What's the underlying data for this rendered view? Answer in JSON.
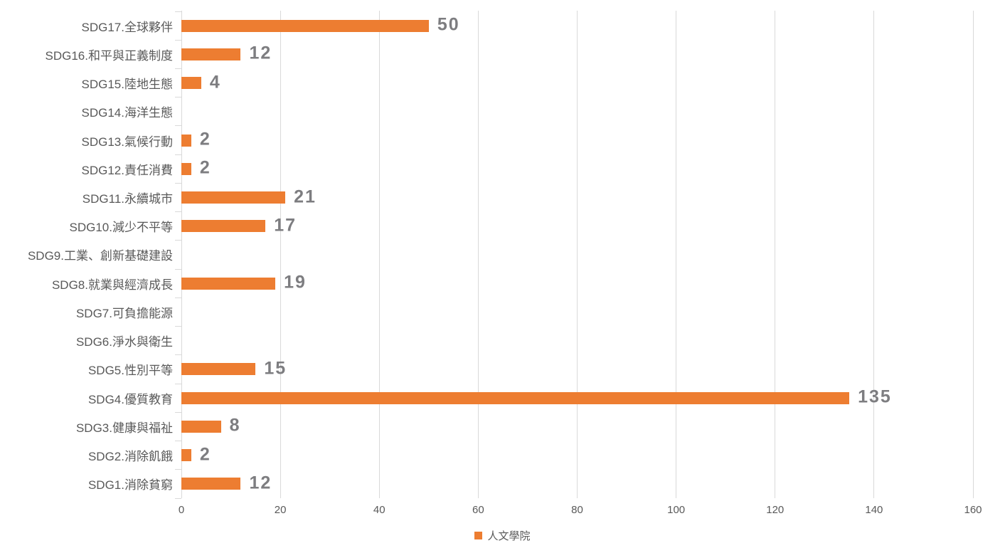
{
  "chart_data": {
    "type": "bar",
    "orientation": "horizontal",
    "title": "",
    "xlabel": "",
    "ylabel": "",
    "categories": [
      "SDG17.全球夥伴",
      "SDG16.和平與正義制度",
      "SDG15.陸地生態",
      "SDG14.海洋生態",
      "SDG13.氣候行動",
      "SDG12.責任消費",
      "SDG11.永續城市",
      "SDG10.減少不平等",
      "SDG9.工業、創新基礎建設",
      "SDG8.就業與經濟成長",
      "SDG7.可負擔能源",
      "SDG6.淨水與衛生",
      "SDG5.性別平等",
      "SDG4.優質教育",
      "SDG3.健康與福祉",
      "SDG2.消除飢餓",
      "SDG1.消除貧窮"
    ],
    "series": [
      {
        "name": "人文學院",
        "values": [
          50,
          12,
          4,
          0,
          2,
          2,
          21,
          17,
          0,
          19,
          0,
          0,
          15,
          135,
          8,
          2,
          12
        ]
      }
    ],
    "xlim": [
      0,
      160
    ],
    "xticks": [
      0,
      20,
      40,
      60,
      80,
      100,
      120,
      140,
      160
    ],
    "grid": true,
    "data_labels_visible": true,
    "data_labels_hidden_for_zero": true,
    "legend": {
      "position": "bottom",
      "label": "人文學院"
    },
    "colors": {
      "bar": "#ed7d31",
      "gridline": "#d9d9d9",
      "category_text": "#595959",
      "tick_text": "#595959",
      "data_label_text": "#7d7d80",
      "background": "#ffffff"
    }
  }
}
